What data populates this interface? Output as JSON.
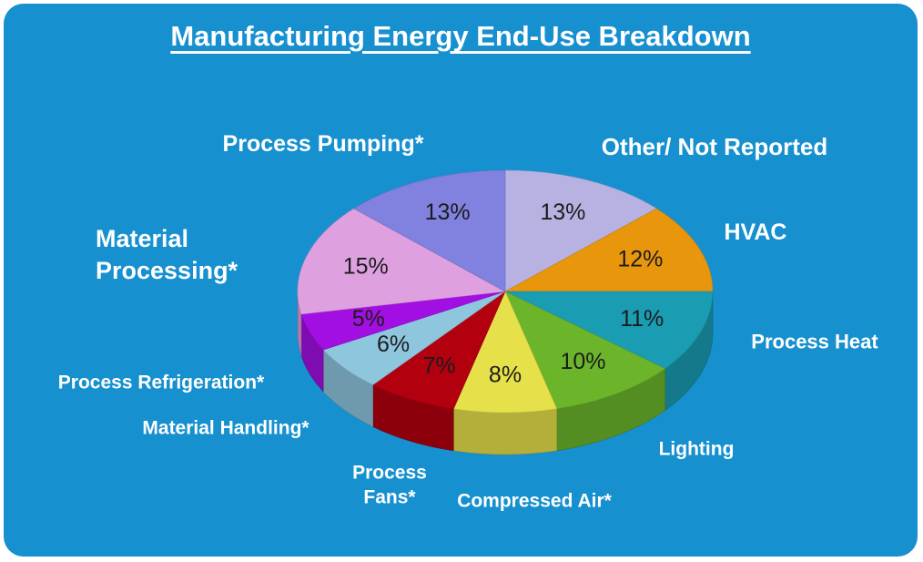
{
  "chart_data": {
    "type": "pie3d",
    "title": "Manufacturing Energy End-Use Breakdown",
    "categories": [
      "Other/ Not Reported",
      "HVAC",
      "Process Heat",
      "Lighting",
      "Compressed Air*",
      "Process Fans*",
      "Material Handling*",
      "Process Refrigeration*",
      "Material Processing*",
      "Process Pumping*"
    ],
    "values": [
      13,
      12,
      11,
      10,
      8,
      7,
      6,
      5,
      15,
      13
    ],
    "value_labels": [
      "13%",
      "12%",
      "11%",
      "10%",
      "8%",
      "7%",
      "6%",
      "5%",
      "15%",
      "13%"
    ],
    "colors": [
      "#b7b2e2",
      "#e8960c",
      "#1a9cb2",
      "#6cb52a",
      "#e6e04a",
      "#b3000f",
      "#8ec6de",
      "#a20fe2",
      "#dea0de",
      "#8181e0"
    ]
  }
}
